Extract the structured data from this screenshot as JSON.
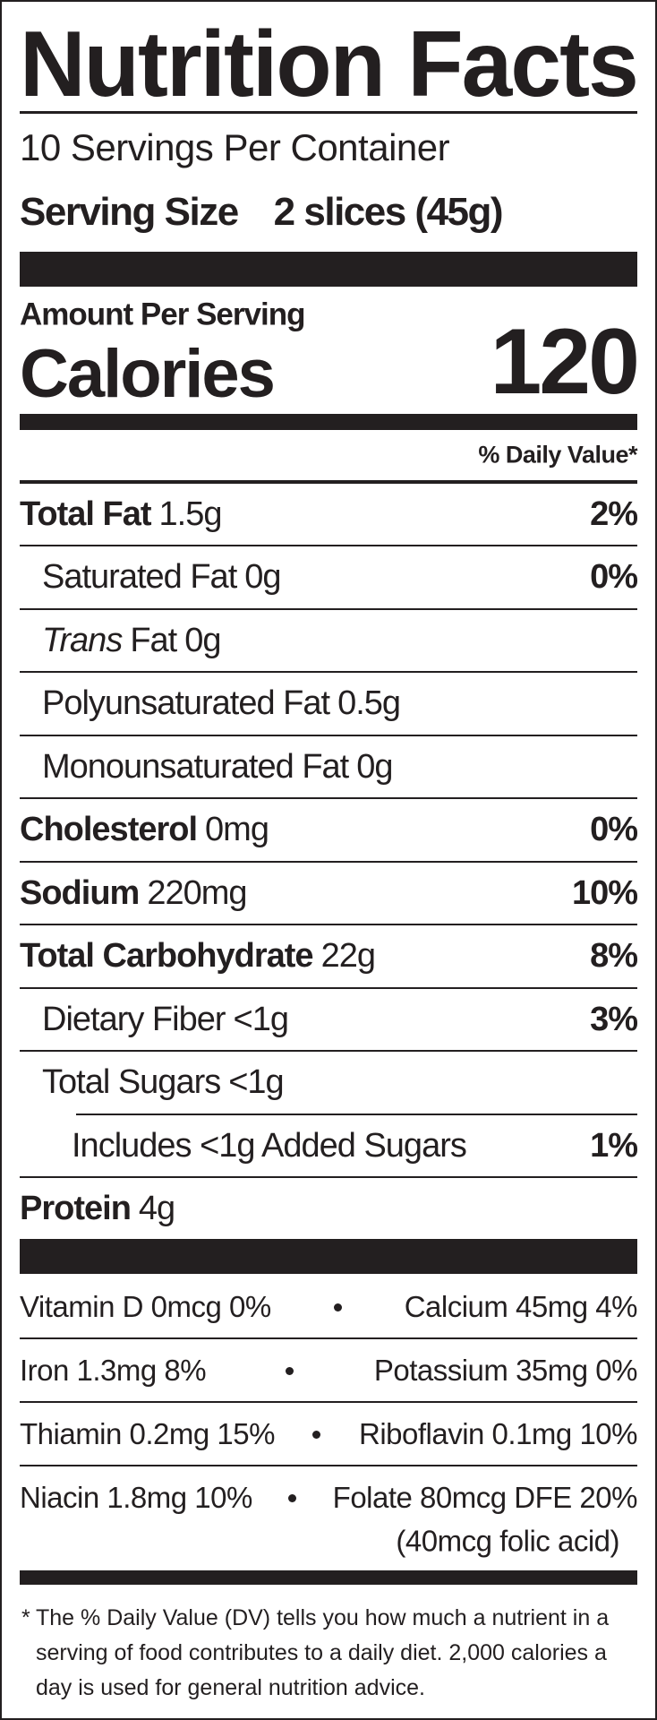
{
  "title": "Nutrition Facts",
  "servings": "10 Servings Per Container",
  "serving_size": {
    "label": "Serving Size",
    "value": "2 slices (45g)"
  },
  "amount_per_serving": "Amount Per Serving",
  "calories": {
    "label": "Calories",
    "value": "120"
  },
  "dv_header": "% Daily Value*",
  "nutrients": [
    {
      "name": "Total Fat",
      "amount": "1.5g",
      "dv": "2%"
    },
    {
      "name": "Saturated Fat",
      "amount": "0g",
      "dv": "0%"
    },
    {
      "prefix": "Trans",
      "name": "Fat",
      "amount": "0g"
    },
    {
      "name": "Polyunsaturated Fat",
      "amount": "0.5g"
    },
    {
      "name": "Monounsaturated Fat",
      "amount": "0g"
    },
    {
      "name": "Cholesterol",
      "amount": "0mg",
      "dv": "0%"
    },
    {
      "name": "Sodium",
      "amount": "220mg",
      "dv": "10%"
    },
    {
      "name": "Total Carbohydrate",
      "amount": "22g",
      "dv": "8%"
    },
    {
      "name": "Dietary Fiber",
      "amount": "<1g",
      "dv": "3%"
    },
    {
      "name": "Total Sugars",
      "amount": "<1g"
    },
    {
      "name": "Includes <1g Added Sugars",
      "dv": "1%"
    },
    {
      "name": "Protein",
      "amount": "4g"
    }
  ],
  "vitamins": [
    {
      "left": "Vitamin D 0mcg 0%",
      "right": "Calcium 45mg 4%"
    },
    {
      "left": "Iron 1.3mg 8%",
      "right": "Potassium 35mg 0%"
    },
    {
      "left": "Thiamin 0.2mg 15%",
      "right": "Riboflavin 0.1mg 10%"
    },
    {
      "left": "Niacin 1.8mg 10%",
      "right": "Folate 80mcg DFE 20%",
      "note": "(40mcg folic acid)"
    }
  ],
  "footnote": {
    "mark": "*",
    "text": "The % Daily Value (DV) tells you how much a nutrient in a serving of food contributes to a daily diet. 2,000 calories a day is used for general nutrition advice."
  }
}
